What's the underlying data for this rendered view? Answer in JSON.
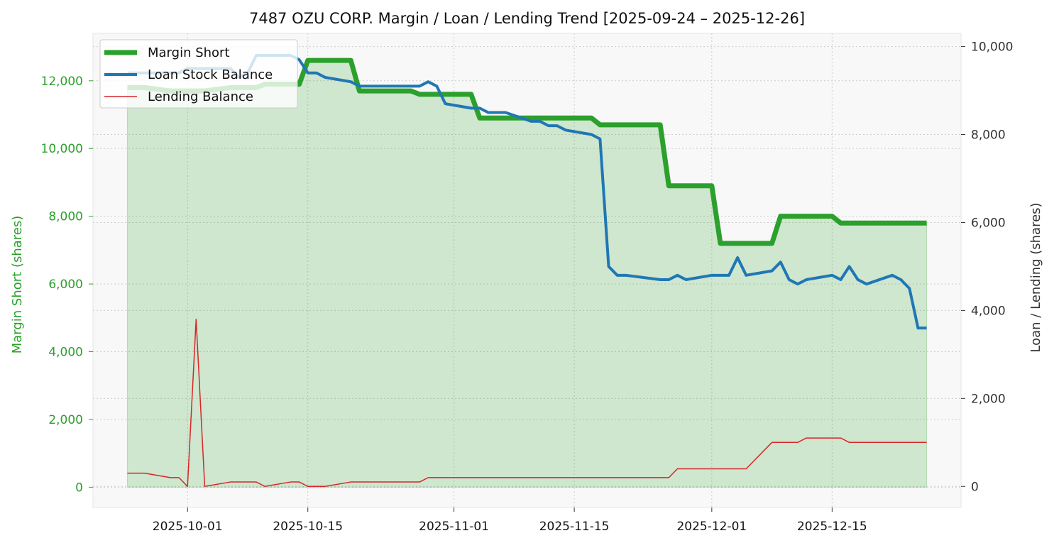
{
  "chart_data": {
    "type": "line",
    "title": "7487 OZU CORP. Margin / Loan / Lending Trend [2025-09-24 – 2025-12-26]",
    "ylabel_left": "Margin Short (shares)",
    "ylabel_right": "Loan / Lending (shares)",
    "ylim_left": [
      -600,
      13400
    ],
    "ylim_right": [
      -480,
      10300
    ],
    "x_range": [
      "2025-09-20",
      "2025-12-30"
    ],
    "x_ticks": [
      {
        "date": "2025-10-01",
        "label": "2025-10-01"
      },
      {
        "date": "2025-10-15",
        "label": "2025-10-15"
      },
      {
        "date": "2025-11-01",
        "label": "2025-11-01"
      },
      {
        "date": "2025-11-15",
        "label": "2025-11-15"
      },
      {
        "date": "2025-12-01",
        "label": "2025-12-01"
      },
      {
        "date": "2025-12-15",
        "label": "2025-12-15"
      }
    ],
    "y_ticks_left": [
      {
        "value": 0,
        "label": "0"
      },
      {
        "value": 2000,
        "label": "2,000"
      },
      {
        "value": 4000,
        "label": "4,000"
      },
      {
        "value": 6000,
        "label": "6,000"
      },
      {
        "value": 8000,
        "label": "8,000"
      },
      {
        "value": 10000,
        "label": "10,000"
      },
      {
        "value": 12000,
        "label": "12,000"
      }
    ],
    "y_ticks_right": [
      {
        "value": 0,
        "label": "0"
      },
      {
        "value": 2000,
        "label": "2,000"
      },
      {
        "value": 4000,
        "label": "4,000"
      },
      {
        "value": 6000,
        "label": "6,000"
      },
      {
        "value": 8000,
        "label": "8,000"
      },
      {
        "value": 10000,
        "label": "10,000"
      }
    ],
    "grid": true,
    "legend_position": "top-left",
    "legend": [
      "Margin Short",
      "Loan Stock Balance",
      "Lending Balance"
    ],
    "colors": {
      "margin": "#2ca02c",
      "margin_fill": "#2ca02c",
      "loan": "#1f77b4",
      "lending": "#d62728",
      "plot_bg": "#f8f8f8",
      "grid": "#cccccc",
      "left_axis_text": "#2ca02c",
      "right_axis_text": "#333333"
    },
    "series": [
      {
        "name": "Margin Short",
        "axis": "left",
        "x": [
          "2025-09-24",
          "2025-09-25",
          "2025-09-26",
          "2025-09-29",
          "2025-09-30",
          "2025-10-01",
          "2025-10-02",
          "2025-10-03",
          "2025-10-06",
          "2025-10-07",
          "2025-10-08",
          "2025-10-09",
          "2025-10-10",
          "2025-10-13",
          "2025-10-14",
          "2025-10-15",
          "2025-10-16",
          "2025-10-17",
          "2025-10-20",
          "2025-10-21",
          "2025-10-22",
          "2025-10-23",
          "2025-10-24",
          "2025-10-27",
          "2025-10-28",
          "2025-10-29",
          "2025-10-30",
          "2025-10-31",
          "2025-11-03",
          "2025-11-04",
          "2025-11-05",
          "2025-11-06",
          "2025-11-07",
          "2025-11-10",
          "2025-11-11",
          "2025-11-12",
          "2025-11-13",
          "2025-11-14",
          "2025-11-17",
          "2025-11-18",
          "2025-11-19",
          "2025-11-20",
          "2025-11-21",
          "2025-11-25",
          "2025-11-26",
          "2025-11-27",
          "2025-11-28",
          "2025-12-01",
          "2025-12-02",
          "2025-12-03",
          "2025-12-04",
          "2025-12-05",
          "2025-12-08",
          "2025-12-09",
          "2025-12-10",
          "2025-12-11",
          "2025-12-12",
          "2025-12-15",
          "2025-12-16",
          "2025-12-17",
          "2025-12-18",
          "2025-12-19",
          "2025-12-22",
          "2025-12-23",
          "2025-12-24",
          "2025-12-25",
          "2025-12-26"
        ],
        "values": [
          11800,
          11800,
          11800,
          11700,
          11700,
          11700,
          11700,
          11700,
          11800,
          11800,
          11800,
          11800,
          11900,
          11900,
          11900,
          12600,
          12600,
          12600,
          12600,
          11700,
          11700,
          11700,
          11700,
          11700,
          11600,
          11600,
          11600,
          11600,
          11600,
          10900,
          10900,
          10900,
          10900,
          10900,
          10900,
          10900,
          10900,
          10900,
          10900,
          10700,
          10700,
          10700,
          10700,
          10700,
          8900,
          8900,
          8900,
          8900,
          7200,
          7200,
          7200,
          7200,
          7200,
          8000,
          8000,
          8000,
          8000,
          8000,
          7800,
          7800,
          7800,
          7800,
          7800,
          7800,
          7800,
          7800,
          7800
        ]
      },
      {
        "name": "Loan Stock Balance",
        "axis": "right",
        "x": [
          "2025-09-24",
          "2025-09-25",
          "2025-09-26",
          "2025-09-29",
          "2025-09-30",
          "2025-10-01",
          "2025-10-02",
          "2025-10-03",
          "2025-10-06",
          "2025-10-07",
          "2025-10-08",
          "2025-10-09",
          "2025-10-10",
          "2025-10-13",
          "2025-10-14",
          "2025-10-15",
          "2025-10-16",
          "2025-10-17",
          "2025-10-20",
          "2025-10-21",
          "2025-10-22",
          "2025-10-23",
          "2025-10-24",
          "2025-10-27",
          "2025-10-28",
          "2025-10-29",
          "2025-10-30",
          "2025-10-31",
          "2025-11-03",
          "2025-11-04",
          "2025-11-05",
          "2025-11-06",
          "2025-11-07",
          "2025-11-10",
          "2025-11-11",
          "2025-11-12",
          "2025-11-13",
          "2025-11-14",
          "2025-11-17",
          "2025-11-18",
          "2025-11-19",
          "2025-11-20",
          "2025-11-21",
          "2025-11-25",
          "2025-11-26",
          "2025-11-27",
          "2025-11-28",
          "2025-12-01",
          "2025-12-02",
          "2025-12-03",
          "2025-12-04",
          "2025-12-05",
          "2025-12-08",
          "2025-12-09",
          "2025-12-10",
          "2025-12-11",
          "2025-12-12",
          "2025-12-15",
          "2025-12-16",
          "2025-12-17",
          "2025-12-18",
          "2025-12-19",
          "2025-12-22",
          "2025-12-23",
          "2025-12-24",
          "2025-12-25",
          "2025-12-26"
        ],
        "values": [
          9400,
          9400,
          9400,
          9400,
          9400,
          9500,
          9500,
          9500,
          9500,
          9300,
          9400,
          9800,
          9800,
          9800,
          9700,
          9400,
          9400,
          9300,
          9200,
          9100,
          9100,
          9100,
          9100,
          9100,
          9100,
          9200,
          9100,
          8700,
          8600,
          8600,
          8500,
          8500,
          8500,
          8300,
          8300,
          8200,
          8200,
          8100,
          8000,
          7900,
          5000,
          4800,
          4800,
          4700,
          4700,
          4800,
          4700,
          4800,
          4800,
          4800,
          5200,
          4800,
          4900,
          5100,
          4700,
          4600,
          4700,
          4800,
          4700,
          5000,
          4700,
          4600,
          4800,
          4700,
          4500,
          3600,
          3600
        ]
      },
      {
        "name": "Lending Balance",
        "axis": "right",
        "x": [
          "2025-09-24",
          "2025-09-25",
          "2025-09-26",
          "2025-09-29",
          "2025-09-30",
          "2025-10-01",
          "2025-10-02",
          "2025-10-03",
          "2025-10-06",
          "2025-10-07",
          "2025-10-08",
          "2025-10-09",
          "2025-10-10",
          "2025-10-13",
          "2025-10-14",
          "2025-10-15",
          "2025-10-16",
          "2025-10-17",
          "2025-10-20",
          "2025-10-21",
          "2025-10-22",
          "2025-10-23",
          "2025-10-24",
          "2025-10-27",
          "2025-10-28",
          "2025-10-29",
          "2025-10-30",
          "2025-10-31",
          "2025-11-03",
          "2025-11-04",
          "2025-11-05",
          "2025-11-06",
          "2025-11-07",
          "2025-11-10",
          "2025-11-11",
          "2025-11-12",
          "2025-11-13",
          "2025-11-14",
          "2025-11-17",
          "2025-11-18",
          "2025-11-19",
          "2025-11-20",
          "2025-11-21",
          "2025-11-25",
          "2025-11-26",
          "2025-11-27",
          "2025-11-28",
          "2025-12-01",
          "2025-12-02",
          "2025-12-03",
          "2025-12-04",
          "2025-12-05",
          "2025-12-08",
          "2025-12-09",
          "2025-12-10",
          "2025-12-11",
          "2025-12-12",
          "2025-12-15",
          "2025-12-16",
          "2025-12-17",
          "2025-12-18",
          "2025-12-19",
          "2025-12-22",
          "2025-12-23",
          "2025-12-24",
          "2025-12-25",
          "2025-12-26"
        ],
        "values": [
          300,
          300,
          300,
          200,
          200,
          0,
          3800,
          0,
          100,
          100,
          100,
          100,
          0,
          100,
          100,
          0,
          0,
          0,
          100,
          100,
          100,
          100,
          100,
          100,
          100,
          200,
          200,
          200,
          200,
          200,
          200,
          200,
          200,
          200,
          200,
          200,
          200,
          200,
          200,
          200,
          200,
          200,
          200,
          200,
          200,
          400,
          400,
          400,
          400,
          400,
          400,
          400,
          1000,
          1000,
          1000,
          1000,
          1100,
          1100,
          1100,
          1000,
          1000,
          1000,
          1000,
          1000,
          1000,
          1000,
          1000
        ]
      }
    ]
  }
}
